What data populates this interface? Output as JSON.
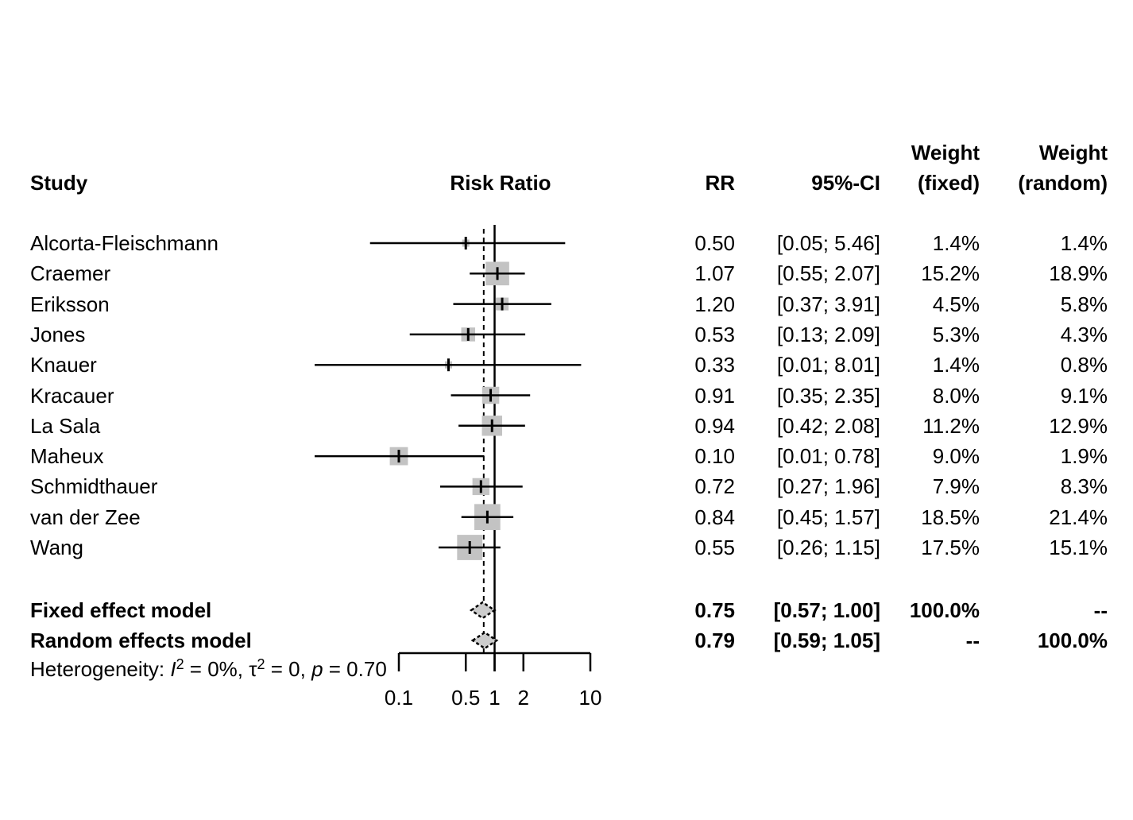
{
  "colors": {
    "box_fill": "#c3c3c3",
    "diamond_fill": "#cccccc",
    "line": "#000000",
    "text": "#000000"
  },
  "header": {
    "study": "Study",
    "risk_ratio": "Risk Ratio",
    "rr": "RR",
    "ci": "95%-CI",
    "weight_fixed_top": "Weight",
    "weight_fixed_bottom": "(fixed)",
    "weight_random_top": "Weight",
    "weight_random_bottom": "(random)"
  },
  "chart_data": {
    "type": "forest",
    "x_scale": "log10",
    "axis_tick_labels": [
      "0.1",
      "0.5",
      "1",
      "2",
      "10"
    ],
    "axis_tick_values": [
      0.1,
      0.5,
      1,
      2,
      10
    ],
    "axis_range": [
      0.1,
      10
    ],
    "reference_line": 1.0,
    "pooled_estimate_line": 0.77,
    "studies": [
      {
        "name": "Alcorta-Fleischmann",
        "rr": 0.5,
        "ci_lower": 0.05,
        "ci_upper": 5.46,
        "rr_text": "0.50",
        "ci_text": "[0.05; 5.46]",
        "weight_fixed": "1.4%",
        "weight_random": "1.4%",
        "weight_fixed_value": 1.4
      },
      {
        "name": "Craemer",
        "rr": 1.07,
        "ci_lower": 0.55,
        "ci_upper": 2.07,
        "rr_text": "1.07",
        "ci_text": "[0.55; 2.07]",
        "weight_fixed": "15.2%",
        "weight_random": "18.9%",
        "weight_fixed_value": 15.2
      },
      {
        "name": "Eriksson",
        "rr": 1.2,
        "ci_lower": 0.37,
        "ci_upper": 3.91,
        "rr_text": "1.20",
        "ci_text": "[0.37; 3.91]",
        "weight_fixed": "4.5%",
        "weight_random": "5.8%",
        "weight_fixed_value": 4.5
      },
      {
        "name": "Jones",
        "rr": 0.53,
        "ci_lower": 0.13,
        "ci_upper": 2.09,
        "rr_text": "0.53",
        "ci_text": "[0.13; 2.09]",
        "weight_fixed": "5.3%",
        "weight_random": "4.3%",
        "weight_fixed_value": 5.3
      },
      {
        "name": "Knauer",
        "rr": 0.33,
        "ci_lower": 0.01,
        "ci_upper": 8.01,
        "rr_text": "0.33",
        "ci_text": "[0.01; 8.01]",
        "weight_fixed": "1.4%",
        "weight_random": "0.8%",
        "weight_fixed_value": 1.4
      },
      {
        "name": "Kracauer",
        "rr": 0.91,
        "ci_lower": 0.35,
        "ci_upper": 2.35,
        "rr_text": "0.91",
        "ci_text": "[0.35; 2.35]",
        "weight_fixed": "8.0%",
        "weight_random": "9.1%",
        "weight_fixed_value": 8.0
      },
      {
        "name": "La Sala",
        "rr": 0.94,
        "ci_lower": 0.42,
        "ci_upper": 2.08,
        "rr_text": "0.94",
        "ci_text": "[0.42; 2.08]",
        "weight_fixed": "11.2%",
        "weight_random": "12.9%",
        "weight_fixed_value": 11.2
      },
      {
        "name": "Maheux",
        "rr": 0.1,
        "ci_lower": 0.01,
        "ci_upper": 0.78,
        "rr_text": "0.10",
        "ci_text": "[0.01; 0.78]",
        "weight_fixed": "9.0%",
        "weight_random": "1.9%",
        "weight_fixed_value": 9.0
      },
      {
        "name": "Schmidthauer",
        "rr": 0.72,
        "ci_lower": 0.27,
        "ci_upper": 1.96,
        "rr_text": "0.72",
        "ci_text": "[0.27; 1.96]",
        "weight_fixed": "7.9%",
        "weight_random": "8.3%",
        "weight_fixed_value": 7.9
      },
      {
        "name": "van der Zee",
        "rr": 0.84,
        "ci_lower": 0.45,
        "ci_upper": 1.57,
        "rr_text": "0.84",
        "ci_text": "[0.45; 1.57]",
        "weight_fixed": "18.5%",
        "weight_random": "21.4%",
        "weight_fixed_value": 18.5
      },
      {
        "name": "Wang",
        "rr": 0.55,
        "ci_lower": 0.26,
        "ci_upper": 1.15,
        "rr_text": "0.55",
        "ci_text": "[0.26; 1.15]",
        "weight_fixed": "17.5%",
        "weight_random": "15.1%",
        "weight_fixed_value": 17.5
      }
    ],
    "summaries": [
      {
        "name": "Fixed effect model",
        "rr": 0.75,
        "ci_lower": 0.57,
        "ci_upper": 1.0,
        "rr_text": "0.75",
        "ci_text": "[0.57; 1.00]",
        "weight_fixed": "100.0%",
        "weight_random": "--"
      },
      {
        "name": "Random effects model",
        "rr": 0.79,
        "ci_lower": 0.59,
        "ci_upper": 1.05,
        "rr_text": "0.79",
        "ci_text": "[0.59; 1.05]",
        "weight_fixed": "--",
        "weight_random": "100.0%"
      }
    ],
    "heterogeneity_segments": [
      {
        "t": "Heterogeneity: "
      },
      {
        "t": "I",
        "it": true
      },
      {
        "t": "2",
        "sup": true
      },
      {
        "t": " = 0%, "
      },
      {
        "t": "τ"
      },
      {
        "t": "2",
        "sup": true
      },
      {
        "t": " = 0, "
      },
      {
        "t": "p",
        "it": true
      },
      {
        "t": " = 0.70"
      }
    ]
  }
}
